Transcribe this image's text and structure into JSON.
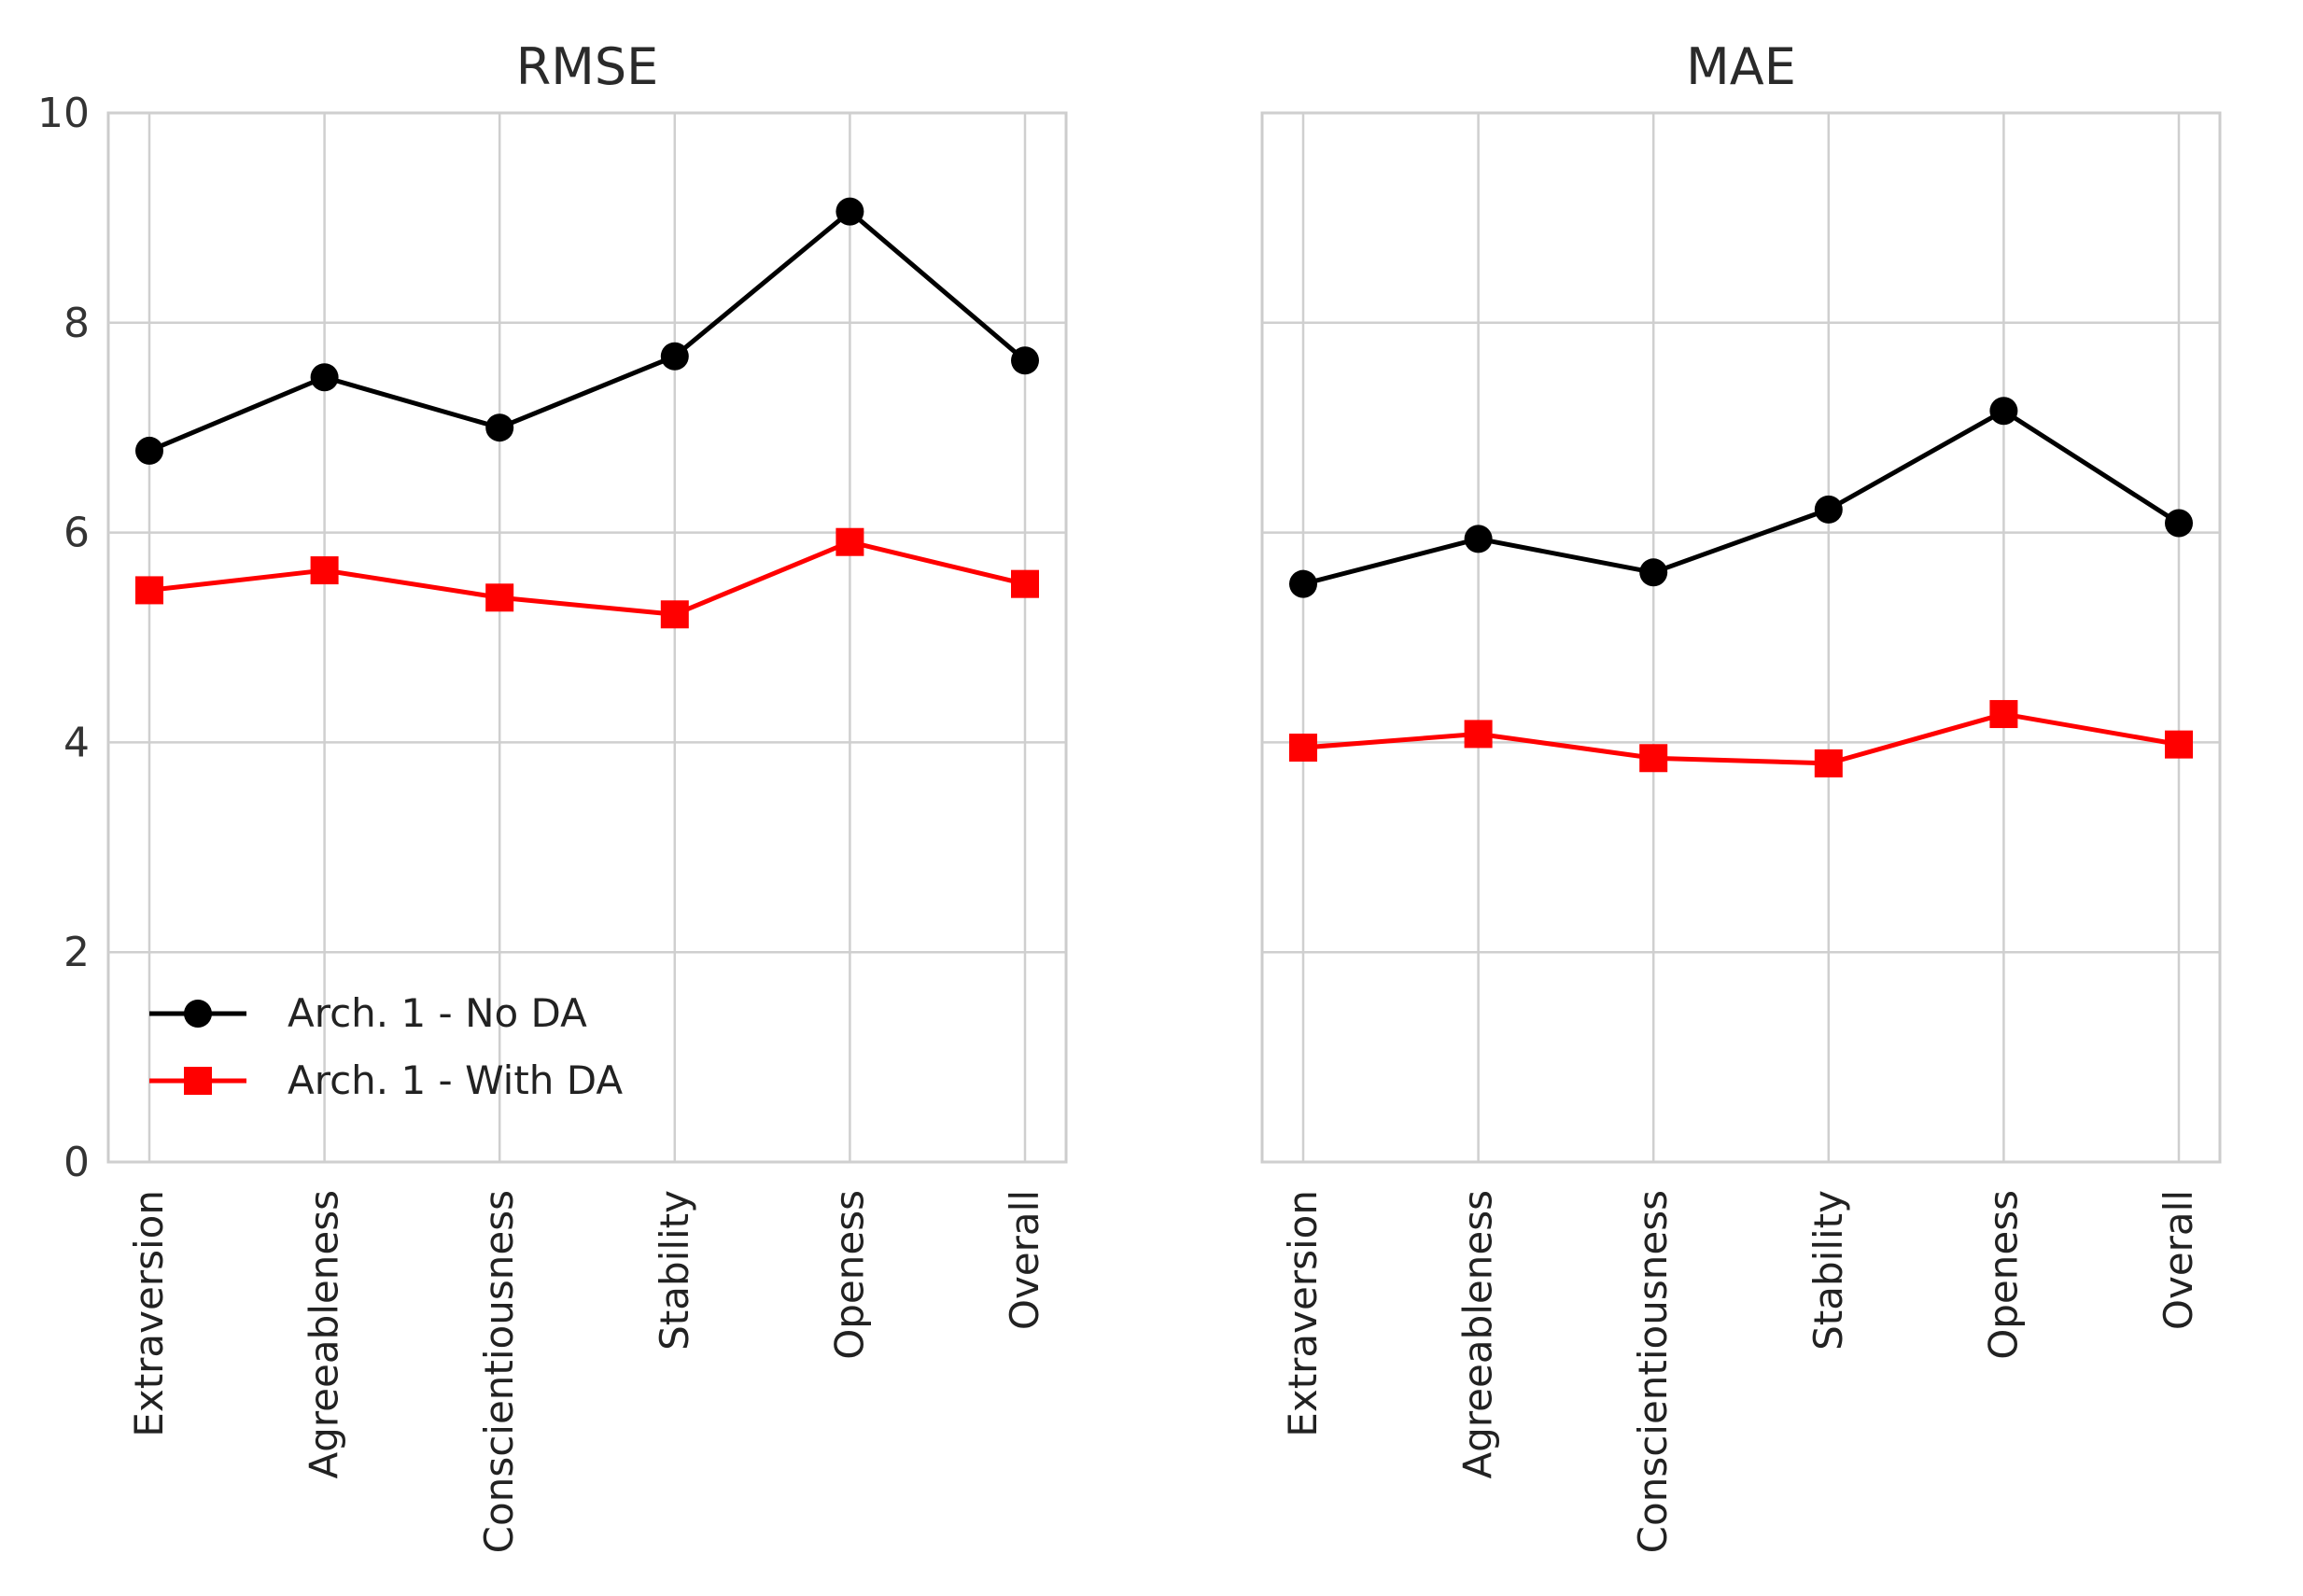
{
  "chart_data": [
    {
      "type": "line",
      "title": "RMSE",
      "categories": [
        "Extraversion",
        "Agreeableness",
        "Conscientiousness",
        "Stability",
        "Openess",
        "Overall"
      ],
      "ylim": [
        0,
        10
      ],
      "yticks": [
        0,
        2,
        4,
        6,
        8,
        10
      ],
      "grid": true,
      "legend": "lower-left",
      "series": [
        {
          "name": "Arch. 1 - No DA",
          "color": "#000000",
          "marker": "circle",
          "values": [
            6.78,
            7.48,
            7.0,
            7.68,
            9.06,
            7.64
          ]
        },
        {
          "name": "Arch. 1 - With DA",
          "color": "#ff0000",
          "marker": "square",
          "values": [
            5.45,
            5.64,
            5.38,
            5.22,
            5.91,
            5.51
          ]
        }
      ]
    },
    {
      "type": "line",
      "title": "MAE",
      "categories": [
        "Extraversion",
        "Agreeableness",
        "Conscientiousness",
        "Stability",
        "Openess",
        "Overall"
      ],
      "ylim": [
        0,
        10
      ],
      "yticks": [
        0,
        2,
        4,
        6,
        8,
        10
      ],
      "grid": true,
      "legend": "none",
      "series": [
        {
          "name": "Arch. 1 - No DA",
          "color": "#000000",
          "marker": "circle",
          "values": [
            5.51,
            5.94,
            5.62,
            6.22,
            7.16,
            6.09
          ]
        },
        {
          "name": "Arch. 1 - With DA",
          "color": "#ff0000",
          "marker": "square",
          "values": [
            3.95,
            4.08,
            3.85,
            3.8,
            4.27,
            3.98
          ]
        }
      ]
    }
  ]
}
